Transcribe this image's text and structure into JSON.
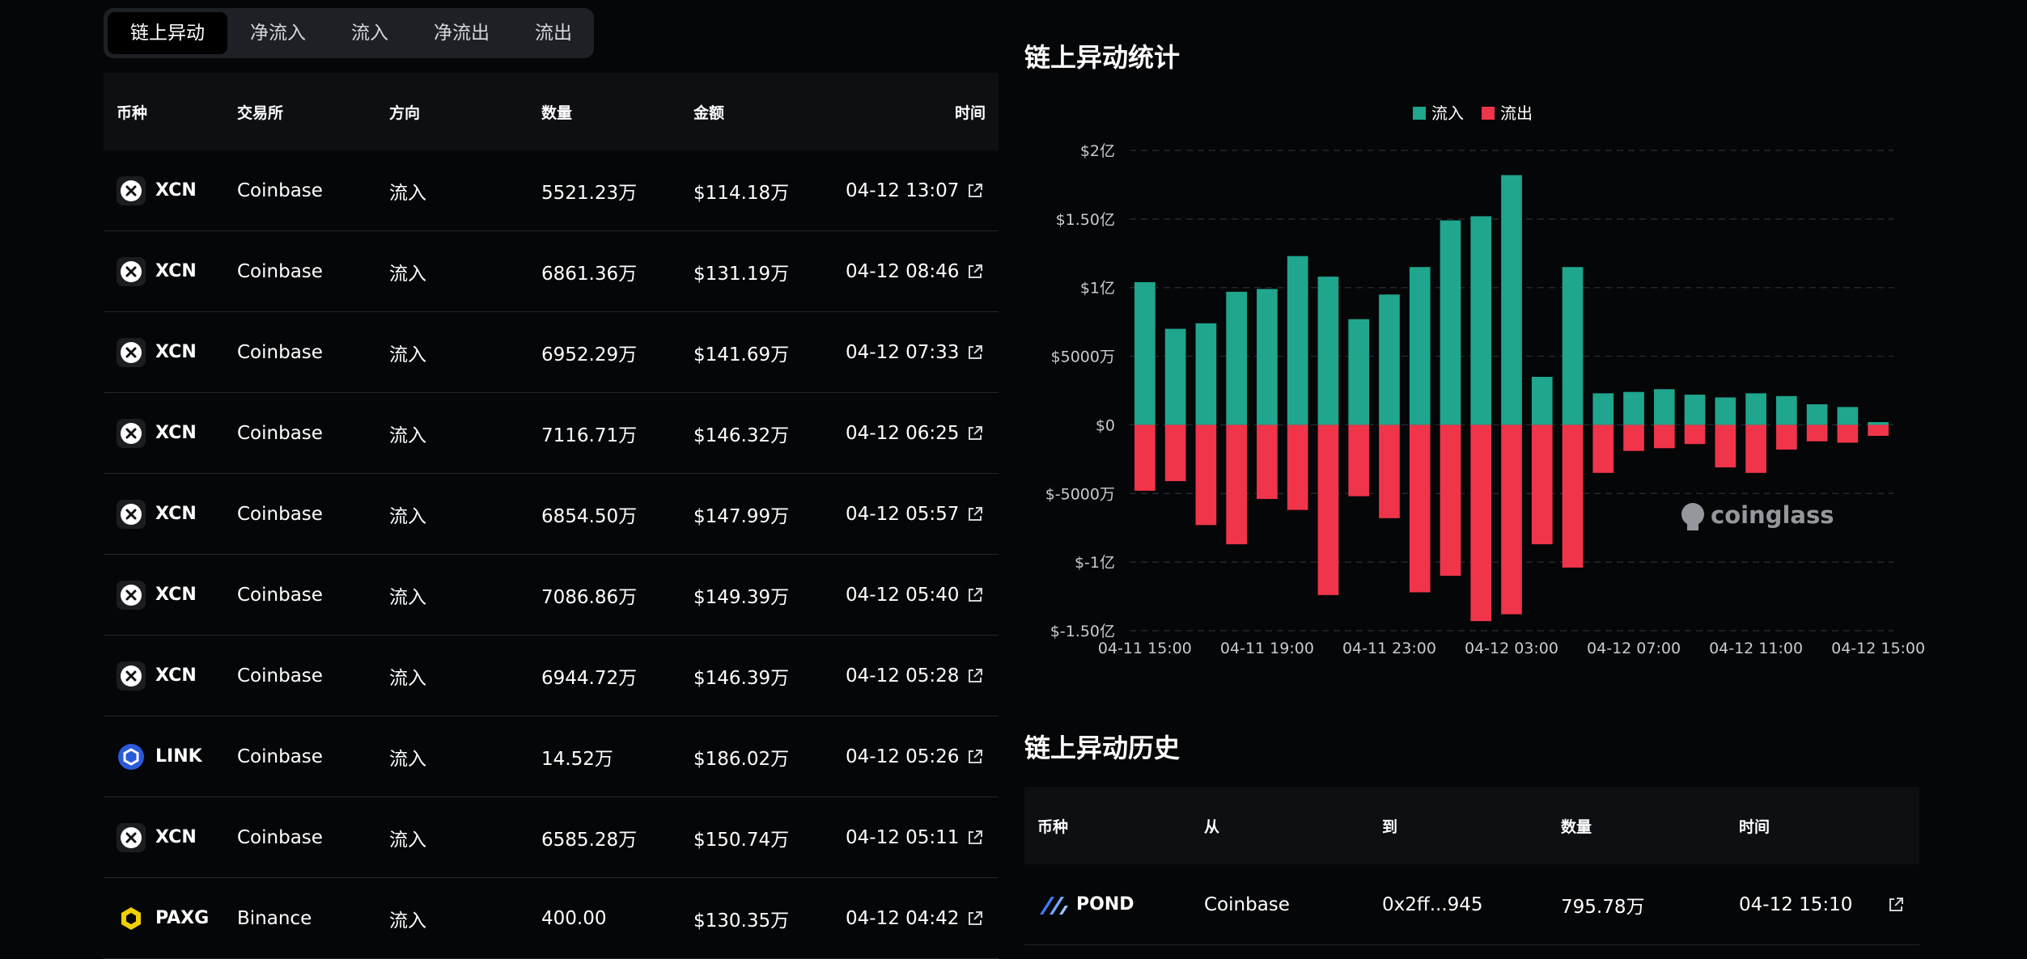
{
  "tabs": [
    "链上异动",
    "净流入",
    "流入",
    "净流出",
    "流出"
  ],
  "active_tab": 0,
  "left_table": {
    "headers": [
      "币种",
      "交易所",
      "方向",
      "数量",
      "金额",
      "时间"
    ],
    "rows": [
      {
        "coin": "XCN",
        "icon": "xcn-icon",
        "exchange": "Coinbase",
        "direction": "流入",
        "qty": "5521.23万",
        "amount": "$114.18万",
        "time": "04-12 13:07"
      },
      {
        "coin": "XCN",
        "icon": "xcn-icon",
        "exchange": "Coinbase",
        "direction": "流入",
        "qty": "6861.36万",
        "amount": "$131.19万",
        "time": "04-12 08:46"
      },
      {
        "coin": "XCN",
        "icon": "xcn-icon",
        "exchange": "Coinbase",
        "direction": "流入",
        "qty": "6952.29万",
        "amount": "$141.69万",
        "time": "04-12 07:33"
      },
      {
        "coin": "XCN",
        "icon": "xcn-icon",
        "exchange": "Coinbase",
        "direction": "流入",
        "qty": "7116.71万",
        "amount": "$146.32万",
        "time": "04-12 06:25"
      },
      {
        "coin": "XCN",
        "icon": "xcn-icon",
        "exchange": "Coinbase",
        "direction": "流入",
        "qty": "6854.50万",
        "amount": "$147.99万",
        "time": "04-12 05:57"
      },
      {
        "coin": "XCN",
        "icon": "xcn-icon",
        "exchange": "Coinbase",
        "direction": "流入",
        "qty": "7086.86万",
        "amount": "$149.39万",
        "time": "04-12 05:40"
      },
      {
        "coin": "XCN",
        "icon": "xcn-icon",
        "exchange": "Coinbase",
        "direction": "流入",
        "qty": "6944.72万",
        "amount": "$146.39万",
        "time": "04-12 05:28"
      },
      {
        "coin": "LINK",
        "icon": "link-icon",
        "exchange": "Coinbase",
        "direction": "流入",
        "qty": "14.52万",
        "amount": "$186.02万",
        "time": "04-12 05:26"
      },
      {
        "coin": "XCN",
        "icon": "xcn-icon",
        "exchange": "Coinbase",
        "direction": "流入",
        "qty": "6585.28万",
        "amount": "$150.74万",
        "time": "04-12 05:11"
      },
      {
        "coin": "PAXG",
        "icon": "paxg-icon",
        "exchange": "Binance",
        "direction": "流入",
        "qty": "400.00",
        "amount": "$130.35万",
        "time": "04-12 04:42"
      }
    ]
  },
  "stats_title": "链上异动统计",
  "history_title": "链上异动历史",
  "watermark": "coinglass",
  "colors": {
    "inflow": "#1fa68d",
    "outflow": "#f0344a",
    "background": "#050608",
    "link_blue": "#2a5ada",
    "paxg_yellow": "#f0d000"
  },
  "chart_data": {
    "type": "bar",
    "legend": [
      "流入",
      "流出"
    ],
    "legend_position": "top-center",
    "grid": true,
    "ylim": [
      -150000000,
      200000000
    ],
    "y_ticks": [
      {
        "value": 200000000,
        "label": "$2亿"
      },
      {
        "value": 150000000,
        "label": "$1.50亿"
      },
      {
        "value": 100000000,
        "label": "$1亿"
      },
      {
        "value": 50000000,
        "label": "$5000万"
      },
      {
        "value": 0,
        "label": "$0"
      },
      {
        "value": -50000000,
        "label": "$-5000万"
      },
      {
        "value": -100000000,
        "label": "$-1亿"
      },
      {
        "value": -150000000,
        "label": "$-1.50亿"
      }
    ],
    "x_tick_labels": [
      "04-11 15:00",
      "04-11 19:00",
      "04-11 23:00",
      "04-12 03:00",
      "04-12 07:00",
      "04-12 11:00",
      "04-12 15:00"
    ],
    "categories": [
      "04-11 15:00",
      "04-11 16:00",
      "04-11 17:00",
      "04-11 18:00",
      "04-11 19:00",
      "04-11 20:00",
      "04-11 21:00",
      "04-11 22:00",
      "04-11 23:00",
      "04-12 00:00",
      "04-12 01:00",
      "04-12 02:00",
      "04-12 03:00",
      "04-12 04:00",
      "04-12 05:00",
      "04-12 06:00",
      "04-12 07:00",
      "04-12 08:00",
      "04-12 09:00",
      "04-12 10:00",
      "04-12 11:00",
      "04-12 12:00",
      "04-12 13:00",
      "04-12 14:00",
      "04-12 15:00"
    ],
    "series": [
      {
        "name": "流入",
        "values": [
          104000000,
          70000000,
          74000000,
          97000000,
          99000000,
          123000000,
          108000000,
          77000000,
          95000000,
          115000000,
          149000000,
          152000000,
          182000000,
          35000000,
          115000000,
          23000000,
          24000000,
          26000000,
          22000000,
          20000000,
          23000000,
          21000000,
          15000000,
          13000000,
          2000000
        ]
      },
      {
        "name": "流出",
        "values": [
          -48000000,
          -41000000,
          -73000000,
          -87000000,
          -54000000,
          -62000000,
          -124000000,
          -52000000,
          -68000000,
          -122000000,
          -110000000,
          -143000000,
          -138000000,
          -87000000,
          -104000000,
          -35000000,
          -19000000,
          -17000000,
          -14000000,
          -31000000,
          -35000000,
          -18000000,
          -12000000,
          -13000000,
          -8000000
        ]
      }
    ]
  },
  "right_table": {
    "headers": [
      "币种",
      "从",
      "到",
      "数量",
      "时间"
    ],
    "rows": [
      {
        "coin": "POND",
        "icon": "pond-icon",
        "from": "Coinbase",
        "to": "0x2ff...945",
        "qty": "795.78万",
        "time": "04-12 15:10"
      }
    ]
  }
}
